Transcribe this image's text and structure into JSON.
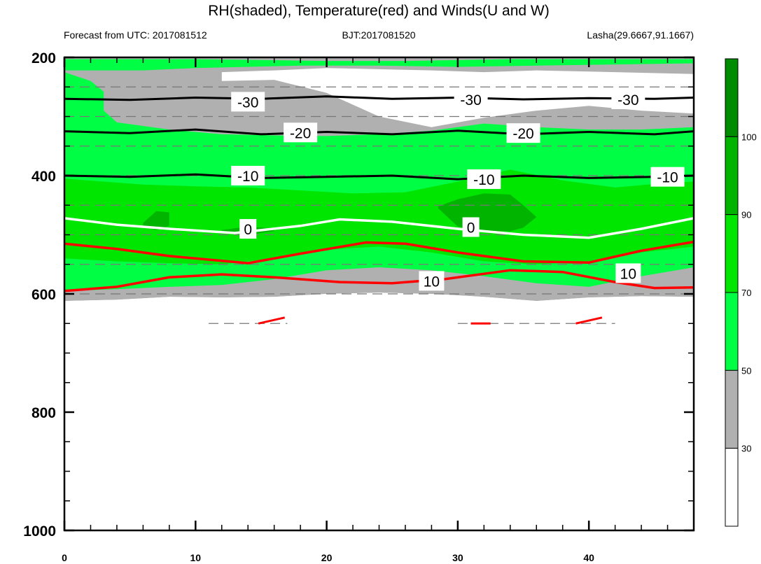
{
  "chart_data": {
    "type": "heatmap",
    "title": "RH(shaded), Temperature(red) and Winds(U and W)",
    "left_string": "Forecast from UTC: 2017081512",
    "center_string": "BJT:2017081520",
    "right_string": "Lasha(29.6667,91.1667)",
    "x": {
      "range": [
        0,
        48
      ],
      "ticks": [
        0,
        10,
        20,
        30,
        40
      ]
    },
    "y": {
      "range": [
        1000,
        200
      ],
      "ticks": [
        200,
        400,
        600,
        800,
        1000
      ],
      "reversed": true
    },
    "colorbar": {
      "labels": [
        30,
        50,
        70,
        90,
        100
      ],
      "colors": [
        "#ffffff",
        "#b0b0b0",
        "#00ff44",
        "#00e600",
        "#00b400",
        "#008c00"
      ]
    },
    "rh_bands": [
      {
        "level": "below_30",
        "color": "#ffffff"
      },
      {
        "level": "30_50",
        "color": "#b0b0b0"
      },
      {
        "level": "50_70",
        "color": "#00ff44"
      },
      {
        "level": "70_90",
        "color": "#00e600"
      },
      {
        "level": "90_100",
        "color": "#00b400"
      }
    ],
    "temperature_contours": [
      {
        "value": -30,
        "color": "#000000",
        "points": [
          [
            0,
            270
          ],
          [
            5,
            272
          ],
          [
            10,
            268
          ],
          [
            15,
            270
          ],
          [
            20,
            266
          ],
          [
            25,
            270
          ],
          [
            30,
            268
          ],
          [
            35,
            271
          ],
          [
            40,
            269
          ],
          [
            45,
            270
          ],
          [
            48,
            268
          ]
        ]
      },
      {
        "value": -20,
        "color": "#000000",
        "points": [
          [
            0,
            325
          ],
          [
            5,
            328
          ],
          [
            10,
            322
          ],
          [
            15,
            330
          ],
          [
            20,
            326
          ],
          [
            25,
            330
          ],
          [
            30,
            324
          ],
          [
            35,
            330
          ],
          [
            40,
            326
          ],
          [
            45,
            330
          ],
          [
            48,
            325
          ]
        ]
      },
      {
        "value": -10,
        "color": "#000000",
        "points": [
          [
            0,
            400
          ],
          [
            5,
            402
          ],
          [
            10,
            398
          ],
          [
            15,
            404
          ],
          [
            20,
            402
          ],
          [
            25,
            400
          ],
          [
            30,
            406
          ],
          [
            35,
            400
          ],
          [
            40,
            404
          ],
          [
            45,
            402
          ],
          [
            48,
            400
          ]
        ]
      },
      {
        "value": 0,
        "color": "#ffffff",
        "points": [
          [
            0,
            472
          ],
          [
            4,
            483
          ],
          [
            8,
            490
          ],
          [
            13,
            497
          ],
          [
            18,
            485
          ],
          [
            21,
            474
          ],
          [
            25,
            478
          ],
          [
            30,
            490
          ],
          [
            35,
            500
          ],
          [
            40,
            505
          ],
          [
            44,
            490
          ],
          [
            48,
            472
          ]
        ]
      },
      {
        "value": 10,
        "color": "#ff0000",
        "points": [
          [
            0,
            595
          ],
          [
            4,
            588
          ],
          [
            8,
            572
          ],
          [
            12,
            567
          ],
          [
            16,
            572
          ],
          [
            21,
            580
          ],
          [
            25,
            582
          ],
          [
            29,
            575
          ],
          [
            34,
            560
          ],
          [
            38,
            563
          ],
          [
            42,
            580
          ],
          [
            45,
            590
          ],
          [
            48,
            589
          ]
        ]
      },
      {
        "value": 10,
        "color": "#ff0000",
        "points": [
          [
            0,
            515
          ],
          [
            4,
            524
          ],
          [
            8,
            536
          ],
          [
            14,
            548
          ],
          [
            18,
            532
          ],
          [
            23,
            513
          ],
          [
            26,
            515
          ],
          [
            30,
            530
          ],
          [
            35,
            545
          ],
          [
            40,
            547
          ],
          [
            44,
            527
          ],
          [
            48,
            512
          ]
        ]
      }
    ],
    "contour_labels": [
      {
        "text": "-30",
        "x": 14,
        "y": 275
      },
      {
        "text": "-30",
        "x": 31,
        "y": 271
      },
      {
        "text": "-30",
        "x": 43,
        "y": 271
      },
      {
        "text": "-20",
        "x": 18,
        "y": 327
      },
      {
        "text": "-20",
        "x": 35,
        "y": 328
      },
      {
        "text": "-10",
        "x": 14,
        "y": 400
      },
      {
        "text": "-10",
        "x": 32,
        "y": 406
      },
      {
        "text": "-10",
        "x": 46,
        "y": 402
      },
      {
        "text": "0",
        "x": 14,
        "y": 490
      },
      {
        "text": "0",
        "x": 31,
        "y": 487
      },
      {
        "text": "10",
        "x": 28,
        "y": 578
      },
      {
        "text": "10",
        "x": 43,
        "y": 565
      }
    ]
  }
}
